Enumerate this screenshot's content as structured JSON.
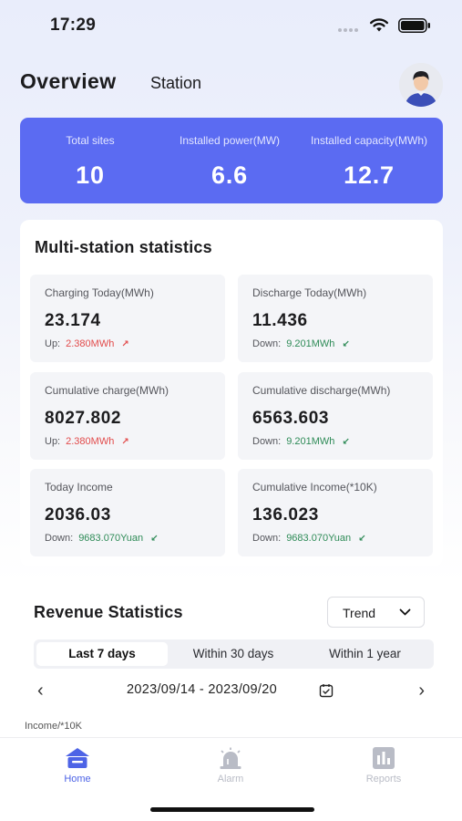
{
  "status": {
    "time": "17:29"
  },
  "header": {
    "title": "Overview",
    "tab": "Station"
  },
  "summary": [
    {
      "label": "Total sites",
      "value": "10"
    },
    {
      "label": "Installed power(MW)",
      "value": "6.6"
    },
    {
      "label": "Installed capacity(MWh)",
      "value": "12.7"
    }
  ],
  "multi": {
    "title": "Multi-station statistics",
    "cards": [
      {
        "label": "Charging Today(MWh)",
        "value": "23.174",
        "delta_label": "Up:",
        "delta_value": "2.380MWh",
        "trend": "up"
      },
      {
        "label": "Discharge Today(MWh)",
        "value": "11.436",
        "delta_label": "Down:",
        "delta_value": "9.201MWh",
        "trend": "down"
      },
      {
        "label": "Cumulative charge(MWh)",
        "value": "8027.802",
        "delta_label": "Up:",
        "delta_value": "2.380MWh",
        "trend": "up"
      },
      {
        "label": "Cumulative discharge(MWh)",
        "value": "6563.603",
        "delta_label": "Down:",
        "delta_value": "9.201MWh",
        "trend": "down"
      },
      {
        "label": "Today Income",
        "value": "2036.03",
        "delta_label": "Down:",
        "delta_value": "9683.070Yuan",
        "trend": "down"
      },
      {
        "label": "Cumulative Income(*10K)",
        "value": "136.023",
        "delta_label": "Down:",
        "delta_value": "9683.070Yuan",
        "trend": "down"
      }
    ]
  },
  "revenue": {
    "title": "Revenue Statistics",
    "dropdown": "Trend",
    "ranges": [
      "Last 7 days",
      "Within 30 days",
      "Within 1 year"
    ],
    "active_range": "Last 7 days",
    "date_range": "2023/09/14 - 2023/09/20",
    "unit_label": "Income/*10K"
  },
  "tabbar": [
    {
      "label": "Home",
      "icon": "home-icon",
      "active": true
    },
    {
      "label": "Alarm",
      "icon": "alarm-icon",
      "active": false
    },
    {
      "label": "Reports",
      "icon": "reports-icon",
      "active": false
    }
  ],
  "colors": {
    "accent": "#5b6bf2",
    "up": "#e24b4b",
    "down": "#2e8b57",
    "tab_active": "#4d63e6"
  }
}
